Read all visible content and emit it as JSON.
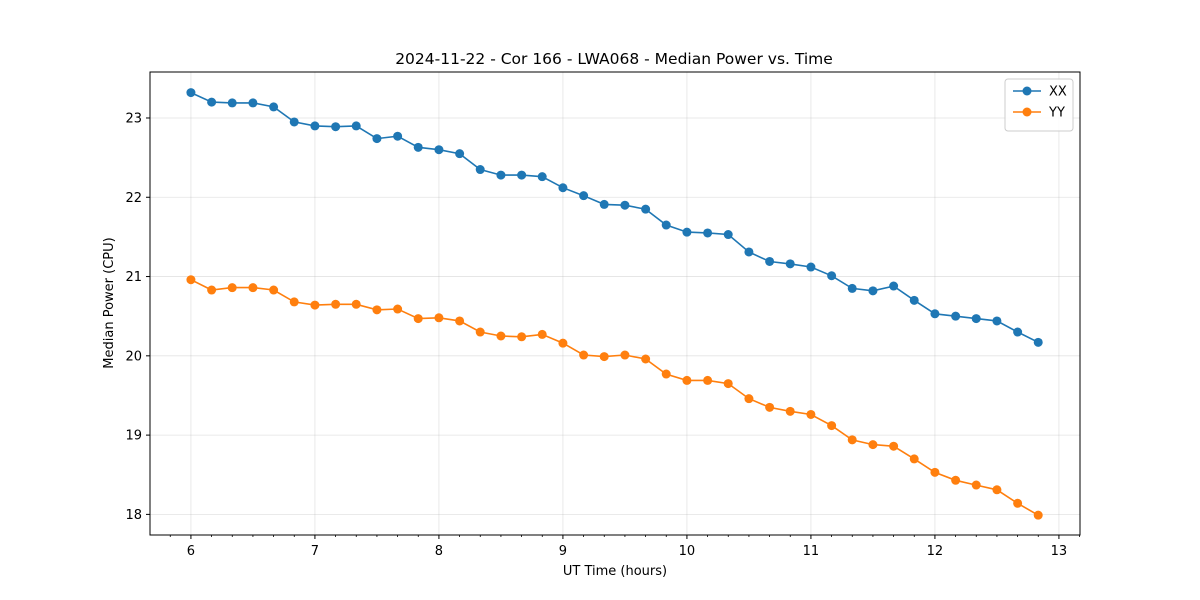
{
  "chart_data": {
    "type": "line",
    "title": "2024-11-22 - Cor 166 - LWA068 - Median Power vs. Time",
    "xlabel": "UT Time (hours)",
    "ylabel": "Median Power (CPU)",
    "xlim": [
      5.67,
      13.17
    ],
    "ylim": [
      17.74,
      23.58
    ],
    "xticks": [
      "6",
      "7",
      "8",
      "9",
      "10",
      "11",
      "12",
      "13"
    ],
    "yticks": [
      "18",
      "19",
      "20",
      "21",
      "22",
      "23"
    ],
    "grid": true,
    "legend_position": "top-right",
    "x": [
      6.0,
      6.167,
      6.333,
      6.5,
      6.667,
      6.833,
      7.0,
      7.167,
      7.333,
      7.5,
      7.667,
      7.833,
      8.0,
      8.167,
      8.333,
      8.5,
      8.667,
      8.833,
      9.0,
      9.167,
      9.333,
      9.5,
      9.667,
      9.833,
      10.0,
      10.167,
      10.333,
      10.5,
      10.667,
      10.833,
      11.0,
      11.167,
      11.333,
      11.5,
      11.667,
      11.833,
      12.0,
      12.167,
      12.333,
      12.5,
      12.667,
      12.833
    ],
    "series": [
      {
        "name": "XX",
        "color": "#1f77b4",
        "values": [
          23.32,
          23.2,
          23.19,
          23.19,
          23.14,
          22.95,
          22.9,
          22.89,
          22.9,
          22.74,
          22.77,
          22.63,
          22.6,
          22.55,
          22.35,
          22.28,
          22.28,
          22.26,
          22.12,
          22.02,
          21.91,
          21.9,
          21.85,
          21.65,
          21.56,
          21.55,
          21.53,
          21.31,
          21.19,
          21.16,
          21.12,
          21.01,
          20.85,
          20.82,
          20.88,
          20.7,
          20.53,
          20.5,
          20.47,
          20.44,
          20.3,
          20.17
        ]
      },
      {
        "name": "YY",
        "color": "#ff7f0e",
        "values": [
          20.96,
          20.83,
          20.86,
          20.86,
          20.83,
          20.68,
          20.64,
          20.65,
          20.65,
          20.58,
          20.59,
          20.47,
          20.48,
          20.44,
          20.3,
          20.25,
          20.24,
          20.27,
          20.16,
          20.01,
          19.99,
          20.01,
          19.96,
          19.77,
          19.69,
          19.69,
          19.65,
          19.46,
          19.35,
          19.3,
          19.26,
          19.12,
          18.94,
          18.88,
          18.86,
          18.7,
          18.53,
          18.43,
          18.37,
          18.31,
          18.14,
          17.99
        ]
      }
    ]
  }
}
